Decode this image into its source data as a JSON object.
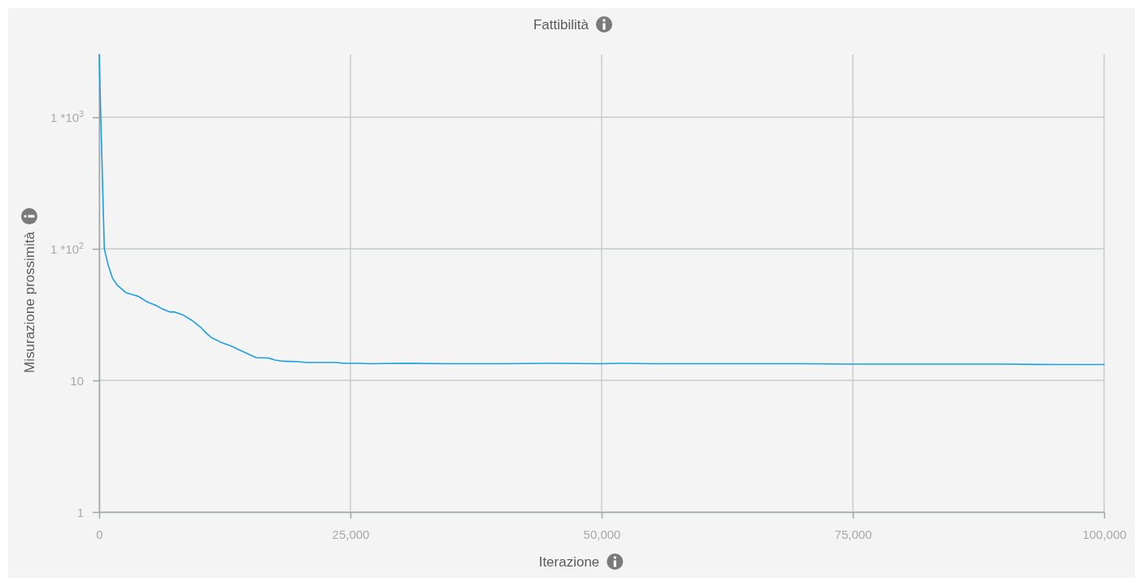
{
  "chart_data": {
    "type": "line",
    "title": "Fattibilità",
    "xlabel": "Iterazione",
    "ylabel": "Misurazione prossimità",
    "x": [
      0,
      160,
      510,
      910,
      1320,
      1800,
      2670,
      3880,
      4830,
      5640,
      6170,
      7060,
      7520,
      8330,
      9140,
      10090,
      10680,
      11160,
      12240,
      13190,
      13860,
      15610,
      16830,
      17500,
      18310,
      19800,
      20600,
      23570,
      24380,
      25730,
      27000,
      30000,
      35000,
      40000,
      45000,
      50000,
      52000,
      55000,
      60000,
      65000,
      70000,
      75000,
      80000,
      85000,
      90000,
      95000,
      100000
    ],
    "series": [
      {
        "color": "#1a9ee0",
        "values": [
          3000,
          1000,
          100,
          74.5,
          60,
          53,
          46.4,
          43.6,
          39.3,
          37.2,
          35.3,
          33.1,
          33.1,
          31.5,
          28.9,
          25.4,
          22.8,
          21.2,
          19.3,
          18.2,
          17.2,
          14.9,
          14.8,
          14.3,
          14.0,
          13.9,
          13.7,
          13.7,
          13.5,
          13.5,
          13.4,
          13.5,
          13.4,
          13.4,
          13.5,
          13.4,
          13.5,
          13.4,
          13.4,
          13.4,
          13.4,
          13.3,
          13.3,
          13.3,
          13.3,
          13.2,
          13.2
        ]
      }
    ],
    "xlim": [
      0,
      100000
    ],
    "ylim": [
      1,
      3000
    ],
    "xticks": [
      0,
      {
        "value": 25000,
        "label": "25,000"
      },
      {
        "value": 50000,
        "label": "50,000"
      },
      {
        "value": 75000,
        "label": "75,000"
      },
      {
        "value": 100000,
        "label": "100,000"
      }
    ],
    "yticks": [
      1,
      10,
      {
        "value": 100,
        "label": "1 *10$^{2}$"
      },
      {
        "value": 1000,
        "label": "1 *10$^{3}$"
      }
    ],
    "log": "y",
    "grid": true
  }
}
